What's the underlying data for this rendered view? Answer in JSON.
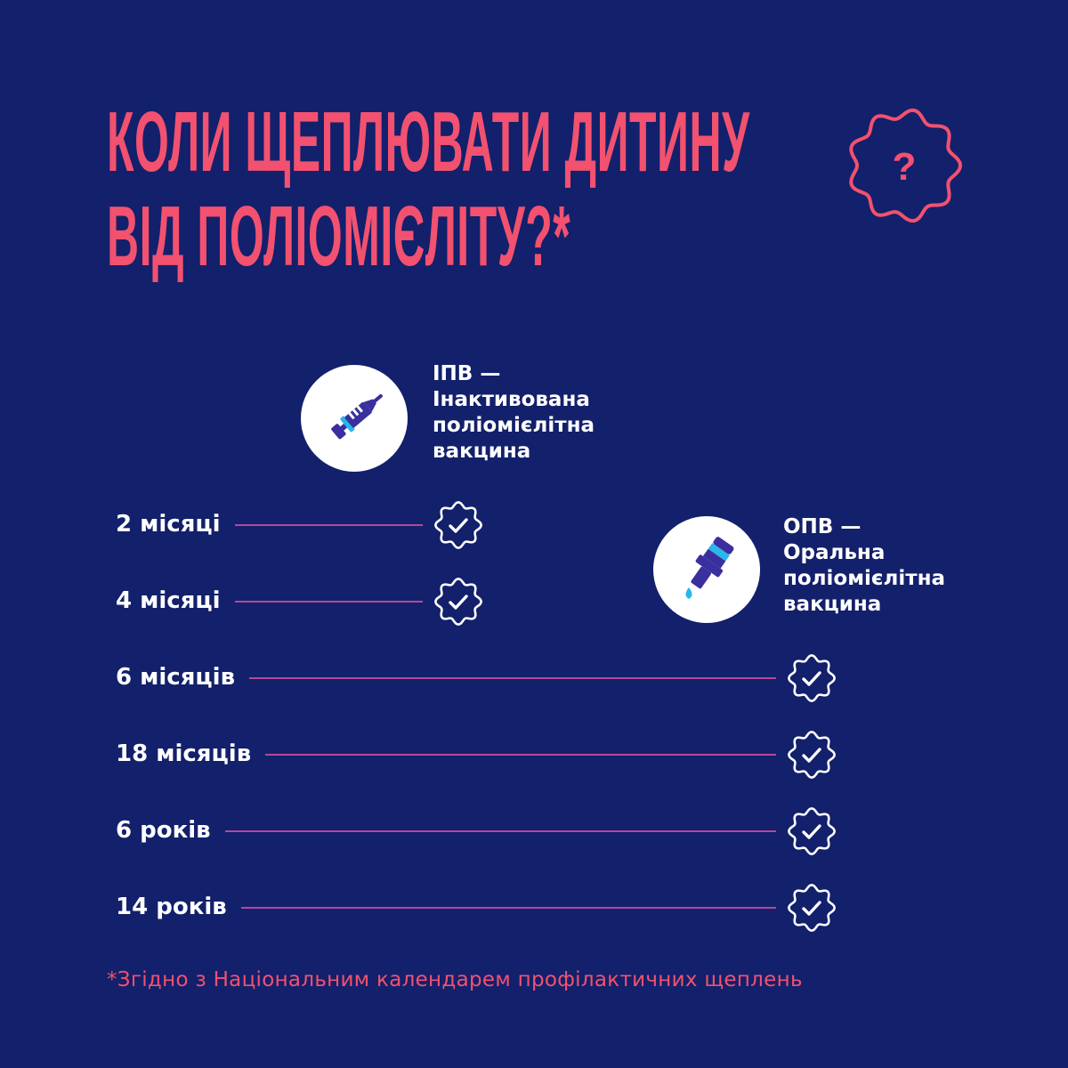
{
  "title": {
    "line1": "КОЛИ ЩЕПЛЮВАТИ ДИТИНУ",
    "line2": "ВІД ПОЛІОМІЄЛІТУ?*"
  },
  "question_badge": {
    "symbol": "?",
    "icon": "question-badge-icon"
  },
  "vaccines": {
    "ipv": {
      "abbr": "ІПВ —",
      "line1": "Інактивована",
      "line2": "поліомієлітна",
      "line3": "вакцина",
      "icon": "syringe-icon"
    },
    "opv": {
      "abbr": "ОПВ —",
      "line1": "Оральна",
      "line2": "поліомієлітна",
      "line3": "вакцина",
      "icon": "dropper-icon"
    }
  },
  "schedule": [
    {
      "age": "2 місяці",
      "vaccine": "ІПВ"
    },
    {
      "age": "4 місяці",
      "vaccine": "ІПВ"
    },
    {
      "age": "6 місяців",
      "vaccine": "ОПВ"
    },
    {
      "age": "18 місяців",
      "vaccine": "ОПВ"
    },
    {
      "age": "6 років",
      "vaccine": "ОПВ"
    },
    {
      "age": "14 років",
      "vaccine": "ОПВ"
    }
  ],
  "footnote": "*Згідно з Національним календарем профілактичних щеплень",
  "colors": {
    "background": "#13206b",
    "accent": "#f2516f",
    "line": "#b5489a",
    "icon_dark": "#3a2f9e",
    "icon_light": "#29b6e8"
  }
}
